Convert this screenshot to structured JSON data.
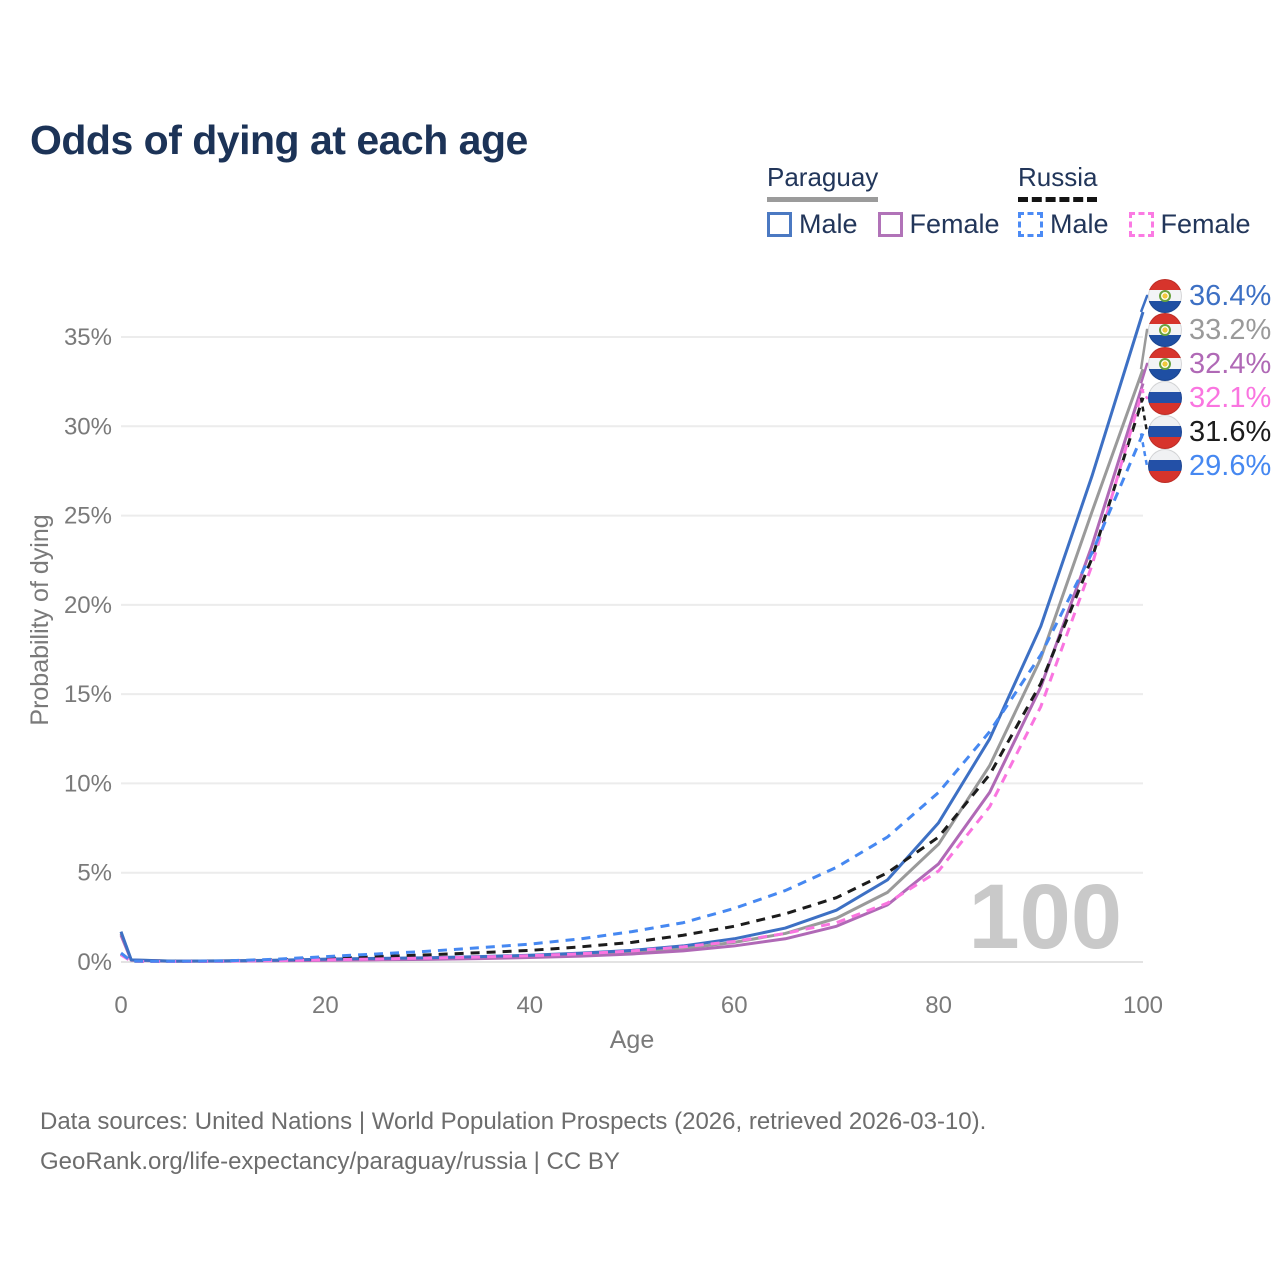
{
  "title": "Odds of dying at each age",
  "legend": {
    "groups": [
      {
        "label": "Paraguay",
        "line_style": "solid",
        "underline_color": "#9b9b9b",
        "items": [
          {
            "label": "Male",
            "color": "#4b79c2"
          },
          {
            "label": "Female",
            "color": "#b173b8"
          }
        ]
      },
      {
        "label": "Russia",
        "line_style": "dashed",
        "underline_color": "#141414",
        "items": [
          {
            "label": "Male",
            "color": "#4c8bf5"
          },
          {
            "label": "Female",
            "color": "#fb7ae3"
          }
        ]
      }
    ]
  },
  "chart_data": {
    "type": "line",
    "title": "Odds of dying at each age",
    "xlabel": "Age",
    "ylabel": "Probability of dying",
    "xlim": [
      0,
      100
    ],
    "ylim": [
      0,
      37.5
    ],
    "grid": "horizontal",
    "legend_position": "top-right",
    "watermark": "100",
    "xtick_values": [
      0,
      20,
      40,
      60,
      80,
      100
    ],
    "xticks": [
      "0",
      "20",
      "40",
      "60",
      "80",
      "100"
    ],
    "ytick_values": [
      0,
      5,
      10,
      15,
      20,
      25,
      30,
      35
    ],
    "yticks": [
      "0%",
      "5%",
      "10%",
      "15%",
      "20%",
      "25%",
      "30%",
      "35%"
    ],
    "x": [
      0,
      1,
      5,
      10,
      15,
      20,
      25,
      30,
      35,
      40,
      45,
      50,
      55,
      60,
      65,
      70,
      75,
      80,
      85,
      90,
      95,
      100
    ],
    "series": [
      {
        "name": "Paraguay Total",
        "country": "paraguay",
        "sex": "total",
        "color": "#9a9a9a",
        "dash": false,
        "values": [
          1.6,
          0.11,
          0.05,
          0.06,
          0.09,
          0.12,
          0.16,
          0.2,
          0.25,
          0.31,
          0.42,
          0.55,
          0.76,
          1.1,
          1.6,
          2.45,
          3.9,
          6.6,
          11.0,
          17.0,
          25.2,
          33.2
        ],
        "end_label": "33.2%"
      },
      {
        "name": "Paraguay Female",
        "country": "paraguay",
        "sex": "female",
        "color": "#b069b6",
        "dash": false,
        "values": [
          1.5,
          0.1,
          0.04,
          0.05,
          0.07,
          0.09,
          0.12,
          0.15,
          0.19,
          0.25,
          0.33,
          0.45,
          0.62,
          0.9,
          1.3,
          2.0,
          3.2,
          5.5,
          9.5,
          15.4,
          23.3,
          32.4
        ],
        "end_label": "32.4%"
      },
      {
        "name": "Paraguay Male",
        "country": "paraguay",
        "sex": "male",
        "color": "#3d70c4",
        "dash": false,
        "values": [
          1.7,
          0.12,
          0.05,
          0.06,
          0.1,
          0.16,
          0.2,
          0.24,
          0.3,
          0.38,
          0.5,
          0.65,
          0.9,
          1.3,
          1.9,
          2.9,
          4.6,
          7.8,
          12.5,
          18.8,
          27.2,
          36.4
        ],
        "end_label": "36.4%"
      },
      {
        "name": "Russia Total",
        "country": "russia",
        "sex": "total",
        "color": "#1c1c1c",
        "dash": true,
        "values": [
          0.45,
          0.05,
          0.035,
          0.05,
          0.12,
          0.2,
          0.3,
          0.4,
          0.52,
          0.65,
          0.85,
          1.1,
          1.5,
          2.0,
          2.7,
          3.6,
          5.0,
          7.0,
          10.5,
          15.6,
          22.6,
          31.6
        ],
        "end_label": "31.6%"
      },
      {
        "name": "Russia Female",
        "country": "russia",
        "sex": "female",
        "color": "#fa75e0",
        "dash": true,
        "values": [
          0.4,
          0.04,
          0.03,
          0.04,
          0.08,
          0.12,
          0.17,
          0.22,
          0.28,
          0.35,
          0.46,
          0.62,
          0.85,
          1.15,
          1.6,
          2.2,
          3.3,
          5.1,
          8.7,
          14.3,
          22.2,
          32.1
        ],
        "end_label": "32.1%"
      },
      {
        "name": "Russia Male",
        "country": "russia",
        "sex": "male",
        "color": "#4688f1",
        "dash": true,
        "values": [
          0.5,
          0.05,
          0.04,
          0.06,
          0.15,
          0.3,
          0.45,
          0.6,
          0.8,
          1.0,
          1.3,
          1.7,
          2.2,
          3.0,
          4.0,
          5.3,
          7.0,
          9.5,
          12.9,
          17.2,
          22.9,
          29.6
        ],
        "end_label": "29.6%"
      }
    ]
  },
  "footer": {
    "line1": "Data sources: United Nations | World Population Prospects (2026, retrieved 2026-03-10).",
    "line2": "GeoRank.org/life-expectancy/paraguay/russia | CC BY"
  }
}
